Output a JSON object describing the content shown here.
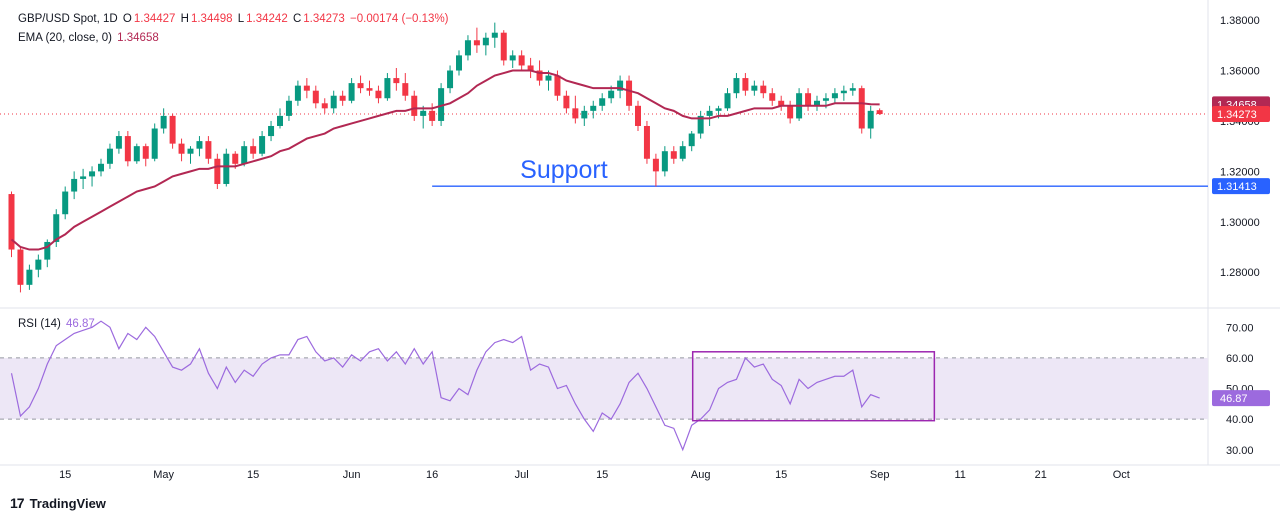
{
  "header": {
    "symbol": "GBP/USD Spot, 1D",
    "o_label": "O",
    "o": "1.34427",
    "h_label": "H",
    "h": "1.34498",
    "l_label": "L",
    "l": "1.34242",
    "c_label": "C",
    "c": "1.34273",
    "change": "−0.00174 (−0.13%)",
    "ema_label": "EMA (20, close, 0)",
    "ema_value": "1.34658",
    "rsi_label": "RSI (14)",
    "rsi_value": "46.87"
  },
  "annotation": {
    "support_text": "Support",
    "support_level": 1.31413,
    "support_label": "1.31413",
    "support_from_index": 47
  },
  "badges": {
    "ema": "1.34658",
    "close": "1.34273",
    "rsi": "46.87"
  },
  "x_axis_labels": [
    "15",
    "May",
    "15",
    "Jun",
    "16",
    "Jul",
    "15",
    "Aug",
    "15",
    "Sep",
    "11",
    "21",
    "Oct"
  ],
  "colors": {
    "up": "#089981",
    "down": "#f23645",
    "ema": "#b22853",
    "rsi": "#9c6ade",
    "rsi_band": "#ede7f6",
    "support_line": "#2962ff",
    "rsi_box": "#9c27b0"
  },
  "logo_text": "TradingView",
  "chart_data": [
    {
      "type": "candlestick",
      "title": "GBP/USD Spot, 1D",
      "y_ticks": [
        "1.28000",
        "1.30000",
        "1.32000",
        "1.34000",
        "1.36000",
        "1.38000"
      ],
      "ylim": [
        1.267,
        1.384
      ],
      "candles": [
        [
          1.311,
          1.312,
          1.286,
          1.289
        ],
        [
          1.289,
          1.29,
          1.272,
          1.275
        ],
        [
          1.275,
          1.283,
          1.273,
          1.281
        ],
        [
          1.281,
          1.287,
          1.278,
          1.285
        ],
        [
          1.285,
          1.293,
          1.282,
          1.292
        ],
        [
          1.292,
          1.305,
          1.29,
          1.303
        ],
        [
          1.303,
          1.314,
          1.301,
          1.312
        ],
        [
          1.312,
          1.32,
          1.309,
          1.317
        ],
        [
          1.317,
          1.321,
          1.313,
          1.318
        ],
        [
          1.318,
          1.322,
          1.314,
          1.32
        ],
        [
          1.32,
          1.325,
          1.318,
          1.323
        ],
        [
          1.323,
          1.331,
          1.321,
          1.329
        ],
        [
          1.329,
          1.336,
          1.327,
          1.334
        ],
        [
          1.334,
          1.336,
          1.322,
          1.324
        ],
        [
          1.324,
          1.331,
          1.323,
          1.33
        ],
        [
          1.33,
          1.331,
          1.322,
          1.325
        ],
        [
          1.325,
          1.339,
          1.324,
          1.337
        ],
        [
          1.337,
          1.345,
          1.335,
          1.342
        ],
        [
          1.342,
          1.343,
          1.329,
          1.331
        ],
        [
          1.331,
          1.333,
          1.324,
          1.327
        ],
        [
          1.327,
          1.33,
          1.323,
          1.329
        ],
        [
          1.329,
          1.334,
          1.326,
          1.332
        ],
        [
          1.332,
          1.334,
          1.323,
          1.325
        ],
        [
          1.325,
          1.327,
          1.313,
          1.315
        ],
        [
          1.315,
          1.329,
          1.314,
          1.327
        ],
        [
          1.327,
          1.328,
          1.321,
          1.323
        ],
        [
          1.323,
          1.332,
          1.322,
          1.33
        ],
        [
          1.33,
          1.333,
          1.325,
          1.327
        ],
        [
          1.327,
          1.336,
          1.326,
          1.334
        ],
        [
          1.334,
          1.34,
          1.332,
          1.338
        ],
        [
          1.338,
          1.345,
          1.337,
          1.342
        ],
        [
          1.342,
          1.35,
          1.34,
          1.348
        ],
        [
          1.348,
          1.356,
          1.346,
          1.354
        ],
        [
          1.354,
          1.357,
          1.349,
          1.352
        ],
        [
          1.352,
          1.354,
          1.345,
          1.347
        ],
        [
          1.347,
          1.349,
          1.343,
          1.345
        ],
        [
          1.345,
          1.352,
          1.343,
          1.35
        ],
        [
          1.35,
          1.352,
          1.346,
          1.348
        ],
        [
          1.348,
          1.357,
          1.347,
          1.355
        ],
        [
          1.355,
          1.358,
          1.351,
          1.353
        ],
        [
          1.353,
          1.356,
          1.35,
          1.352
        ],
        [
          1.352,
          1.354,
          1.347,
          1.349
        ],
        [
          1.349,
          1.359,
          1.348,
          1.357
        ],
        [
          1.357,
          1.361,
          1.352,
          1.355
        ],
        [
          1.355,
          1.359,
          1.348,
          1.35
        ],
        [
          1.35,
          1.352,
          1.34,
          1.342
        ],
        [
          1.342,
          1.346,
          1.337,
          1.344
        ],
        [
          1.344,
          1.347,
          1.338,
          1.34
        ],
        [
          1.34,
          1.355,
          1.338,
          1.353
        ],
        [
          1.353,
          1.362,
          1.351,
          1.36
        ],
        [
          1.36,
          1.368,
          1.358,
          1.366
        ],
        [
          1.366,
          1.374,
          1.364,
          1.372
        ],
        [
          1.372,
          1.377,
          1.367,
          1.37
        ],
        [
          1.37,
          1.375,
          1.366,
          1.373
        ],
        [
          1.373,
          1.379,
          1.369,
          1.375
        ],
        [
          1.375,
          1.376,
          1.362,
          1.364
        ],
        [
          1.364,
          1.368,
          1.361,
          1.366
        ],
        [
          1.366,
          1.368,
          1.36,
          1.362
        ],
        [
          1.362,
          1.365,
          1.357,
          1.36
        ],
        [
          1.36,
          1.364,
          1.354,
          1.356
        ],
        [
          1.356,
          1.36,
          1.352,
          1.358
        ],
        [
          1.358,
          1.36,
          1.348,
          1.35
        ],
        [
          1.35,
          1.352,
          1.343,
          1.345
        ],
        [
          1.345,
          1.35,
          1.339,
          1.341
        ],
        [
          1.341,
          1.346,
          1.338,
          1.344
        ],
        [
          1.344,
          1.348,
          1.341,
          1.346
        ],
        [
          1.346,
          1.351,
          1.344,
          1.349
        ],
        [
          1.349,
          1.354,
          1.347,
          1.352
        ],
        [
          1.352,
          1.358,
          1.349,
          1.356
        ],
        [
          1.356,
          1.358,
          1.344,
          1.346
        ],
        [
          1.346,
          1.348,
          1.336,
          1.338
        ],
        [
          1.338,
          1.34,
          1.323,
          1.325
        ],
        [
          1.325,
          1.327,
          1.314,
          1.32
        ],
        [
          1.32,
          1.33,
          1.318,
          1.328
        ],
        [
          1.328,
          1.33,
          1.323,
          1.325
        ],
        [
          1.325,
          1.332,
          1.324,
          1.33
        ],
        [
          1.33,
          1.336,
          1.328,
          1.335
        ],
        [
          1.335,
          1.344,
          1.333,
          1.342
        ],
        [
          1.342,
          1.346,
          1.338,
          1.344
        ],
        [
          1.344,
          1.346,
          1.341,
          1.345
        ],
        [
          1.345,
          1.353,
          1.344,
          1.351
        ],
        [
          1.351,
          1.359,
          1.349,
          1.357
        ],
        [
          1.357,
          1.359,
          1.35,
          1.352
        ],
        [
          1.352,
          1.356,
          1.35,
          1.354
        ],
        [
          1.354,
          1.356,
          1.349,
          1.351
        ],
        [
          1.351,
          1.353,
          1.346,
          1.348
        ],
        [
          1.348,
          1.35,
          1.344,
          1.346
        ],
        [
          1.346,
          1.348,
          1.339,
          1.341
        ],
        [
          1.341,
          1.353,
          1.34,
          1.351
        ],
        [
          1.351,
          1.353,
          1.344,
          1.346
        ],
        [
          1.346,
          1.35,
          1.344,
          1.348
        ],
        [
          1.348,
          1.351,
          1.345,
          1.349
        ],
        [
          1.349,
          1.353,
          1.347,
          1.351
        ],
        [
          1.351,
          1.354,
          1.348,
          1.352
        ],
        [
          1.352,
          1.355,
          1.35,
          1.353
        ],
        [
          1.353,
          1.354,
          1.335,
          1.337
        ],
        [
          1.337,
          1.346,
          1.333,
          1.344
        ],
        [
          1.34427,
          1.34498,
          1.34242,
          1.34273
        ]
      ],
      "ema_20": [
        1.293,
        1.29,
        1.289,
        1.289,
        1.29,
        1.293,
        1.295,
        1.298,
        1.3,
        1.302,
        1.304,
        1.306,
        1.308,
        1.31,
        1.312,
        1.313,
        1.314,
        1.316,
        1.318,
        1.319,
        1.32,
        1.321,
        1.321,
        1.322,
        1.322,
        1.322,
        1.323,
        1.324,
        1.325,
        1.326,
        1.328,
        1.329,
        1.331,
        1.333,
        1.334,
        1.335,
        1.337,
        1.338,
        1.339,
        1.34,
        1.341,
        1.342,
        1.343,
        1.344,
        1.344,
        1.345,
        1.345,
        1.345,
        1.346,
        1.347,
        1.349,
        1.351,
        1.354,
        1.356,
        1.358,
        1.359,
        1.36,
        1.36,
        1.36,
        1.359,
        1.359,
        1.358,
        1.356,
        1.355,
        1.354,
        1.353,
        1.353,
        1.353,
        1.353,
        1.352,
        1.351,
        1.349,
        1.347,
        1.345,
        1.344,
        1.342,
        1.341,
        1.341,
        1.341,
        1.342,
        1.342,
        1.343,
        1.344,
        1.345,
        1.345,
        1.345,
        1.346,
        1.346,
        1.346,
        1.346,
        1.346,
        1.346,
        1.347,
        1.347,
        1.347,
        1.347,
        1.3466,
        1.34658
      ],
      "x_labels": [
        "15",
        "May",
        "15",
        "Jun",
        "16",
        "Jul",
        "15",
        "Aug",
        "15",
        "Sep",
        "11",
        "21",
        "Oct"
      ]
    },
    {
      "type": "line",
      "title": "RSI (14)",
      "y_ticks": [
        "30.00",
        "40.00",
        "50.00",
        "60.00",
        "70.00"
      ],
      "ylim": [
        26,
        75
      ],
      "band": [
        40,
        60
      ],
      "values": [
        55,
        41,
        44,
        50,
        58,
        64,
        66,
        68,
        69,
        70,
        72,
        70,
        63,
        68,
        66,
        70,
        67,
        62,
        57,
        56,
        58,
        63,
        55,
        50,
        57,
        52,
        56,
        54,
        58,
        60,
        61,
        61,
        66,
        67,
        62,
        59,
        60,
        57,
        61,
        59,
        62,
        63,
        59,
        62,
        58,
        63,
        58,
        62,
        47,
        46,
        50,
        48,
        56,
        62,
        65,
        66,
        65,
        67,
        56,
        58,
        57,
        50,
        51,
        45,
        40,
        36,
        42,
        40,
        45,
        52,
        55,
        50,
        44,
        38,
        37,
        30,
        38,
        40,
        43,
        50,
        52,
        53,
        60,
        57,
        58,
        53,
        51,
        45,
        53,
        50,
        52,
        53,
        54,
        54,
        56,
        44,
        48,
        46.87
      ],
      "x_labels": [
        "15",
        "May",
        "15",
        "Jun",
        "16",
        "Jul",
        "15",
        "Aug",
        "15",
        "Sep",
        "11",
        "21",
        "Oct"
      ]
    }
  ]
}
